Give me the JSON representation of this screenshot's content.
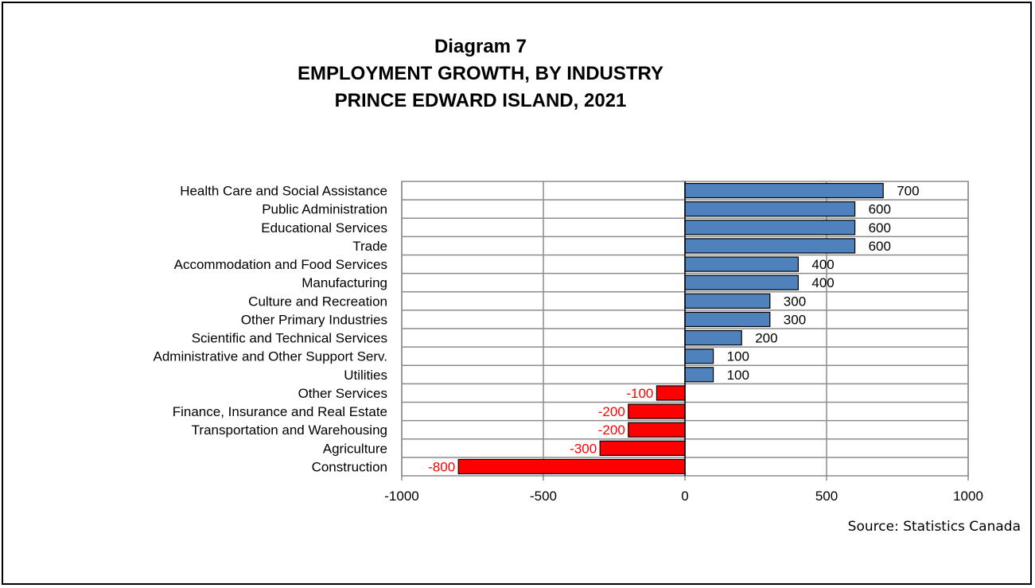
{
  "chart_data": {
    "type": "bar",
    "orientation": "horizontal",
    "title": [
      "Diagram 7",
      "EMPLOYMENT GROWTH, BY INDUSTRY",
      "PRINCE EDWARD ISLAND, 2021"
    ],
    "categories": [
      "Health Care and Social Assistance",
      "Public Administration",
      "Educational Services",
      "Trade",
      "Accommodation and Food Services",
      "Manufacturing",
      "Culture and Recreation",
      "Other Primary Industries",
      "Scientific and Technical Services",
      "Administrative and Other Support Serv.",
      "Utilities",
      "Other Services",
      "Finance, Insurance and Real Estate",
      "Transportation and Warehousing",
      "Agriculture",
      "Construction"
    ],
    "values": [
      700,
      600,
      600,
      600,
      400,
      400,
      300,
      300,
      200,
      100,
      100,
      -100,
      -200,
      -200,
      -300,
      -800
    ],
    "xlim": [
      -1000,
      1000
    ],
    "xticks": [
      -1000,
      -500,
      0,
      500,
      1000
    ],
    "xtick_labels": [
      "-1000",
      "-500",
      "0",
      "500",
      "1000"
    ],
    "grid": true,
    "colors": {
      "positive": "#4f81bd",
      "negative": "#ff0000",
      "positive_label": "#000000",
      "negative_label": "#ff0000",
      "grid": "#8c8c8c"
    },
    "source": "Source: Statistics Canada"
  }
}
